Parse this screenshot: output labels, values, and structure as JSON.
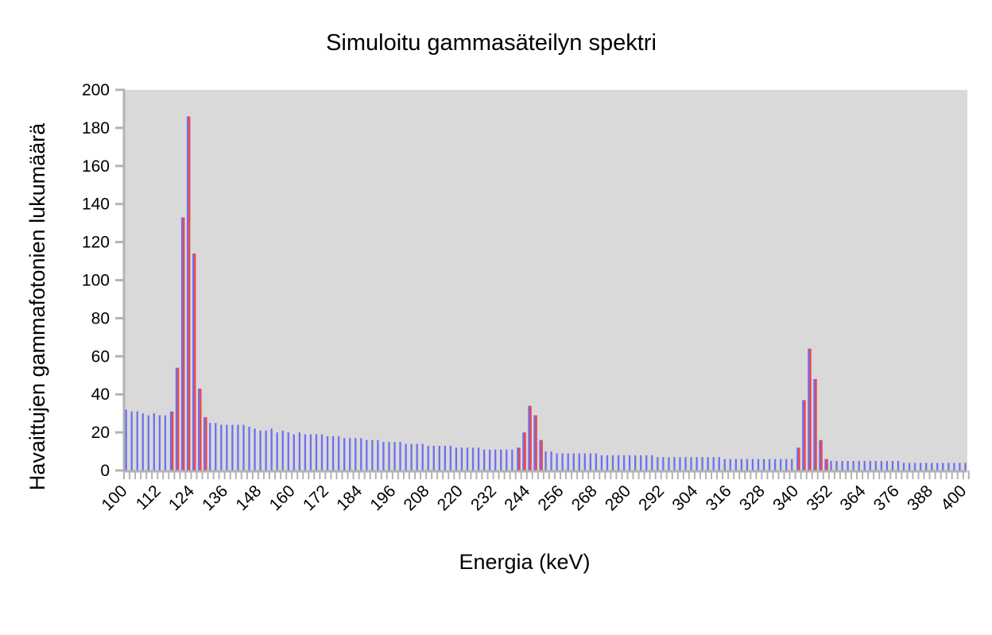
{
  "chart_data": {
    "type": "bar",
    "title": "Simuloitu gammasäteilyn spektri",
    "xlabel": "Energia (keV)",
    "ylabel": "Havaittujen gammafotonien lukumäärä",
    "ylim": [
      0,
      200
    ],
    "yticks": [
      0,
      20,
      40,
      60,
      80,
      100,
      120,
      140,
      160,
      180,
      200
    ],
    "xrange": [
      100,
      400
    ],
    "xstep": 2,
    "xtick_labels": [
      "100",
      "112",
      "124",
      "136",
      "148",
      "160",
      "172",
      "184",
      "196",
      "208",
      "220",
      "232",
      "244",
      "256",
      "268",
      "280",
      "292",
      "304",
      "316",
      "328",
      "340",
      "352",
      "364",
      "376",
      "388",
      "400"
    ],
    "grid": false,
    "background": "#d9d9d9",
    "series": [
      {
        "color": "#6f6ff0",
        "values": [
          32,
          31,
          31,
          30,
          29,
          30,
          29,
          29,
          31,
          54,
          133,
          186,
          114,
          43,
          28,
          25,
          25,
          24,
          24,
          24,
          24,
          24,
          23,
          22,
          21,
          21,
          22,
          20,
          21,
          20,
          19,
          20,
          19,
          19,
          19,
          19,
          18,
          18,
          18,
          17,
          17,
          17,
          17,
          16,
          16,
          16,
          15,
          15,
          15,
          15,
          14,
          14,
          14,
          14,
          13,
          13,
          13,
          13,
          13,
          12,
          12,
          12,
          12,
          12,
          11,
          11,
          11,
          11,
          11,
          11,
          12,
          20,
          34,
          29,
          16,
          10,
          10,
          9,
          9,
          9,
          9,
          9,
          9,
          9,
          9,
          8,
          8,
          8,
          8,
          8,
          8,
          8,
          8,
          8,
          8,
          7,
          7,
          7,
          7,
          7,
          7,
          7,
          7,
          7,
          7,
          7,
          7,
          6,
          6,
          6,
          6,
          6,
          6,
          6,
          6,
          6,
          6,
          6,
          6,
          6,
          12,
          37,
          64,
          48,
          16,
          6,
          5,
          5,
          5,
          5,
          5,
          5,
          5,
          5,
          5,
          5,
          5,
          5,
          5,
          4,
          4,
          4,
          4,
          4,
          4,
          4,
          4,
          4,
          4,
          4,
          4
        ]
      },
      {
        "color": "#f04444",
        "values": [
          0,
          0,
          0,
          0,
          0,
          0,
          0,
          0,
          31,
          54,
          133,
          186,
          114,
          43,
          28,
          0,
          0,
          0,
          0,
          0,
          0,
          0,
          0,
          0,
          0,
          0,
          0,
          0,
          0,
          0,
          0,
          0,
          0,
          0,
          0,
          0,
          0,
          0,
          0,
          0,
          0,
          0,
          0,
          0,
          0,
          0,
          0,
          0,
          0,
          0,
          0,
          0,
          0,
          0,
          0,
          0,
          0,
          0,
          0,
          0,
          0,
          0,
          0,
          0,
          0,
          0,
          0,
          0,
          0,
          0,
          12,
          20,
          34,
          29,
          16,
          0,
          0,
          0,
          0,
          0,
          0,
          0,
          0,
          0,
          0,
          0,
          0,
          0,
          0,
          0,
          0,
          0,
          0,
          0,
          0,
          0,
          0,
          0,
          0,
          0,
          0,
          0,
          0,
          0,
          0,
          0,
          0,
          0,
          0,
          0,
          0,
          0,
          0,
          0,
          0,
          0,
          0,
          0,
          0,
          0,
          12,
          37,
          64,
          48,
          16,
          6,
          0,
          0,
          0,
          0,
          0,
          0,
          0,
          0,
          0,
          0,
          0,
          0,
          0,
          0,
          0,
          0,
          0,
          0,
          0,
          0,
          0,
          0,
          0,
          0,
          0
        ]
      }
    ]
  }
}
